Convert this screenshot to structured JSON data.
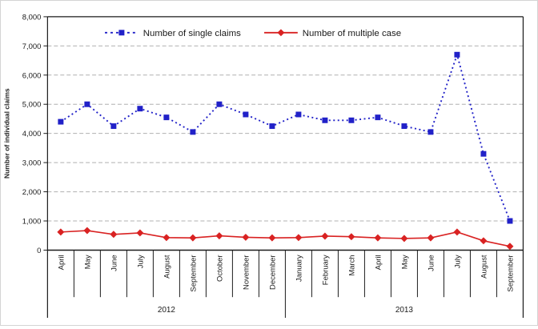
{
  "chart_data": {
    "type": "line",
    "title": "",
    "ylabel": "Number of individual claims",
    "xlabel": "",
    "ylim": [
      0,
      8000
    ],
    "ytick_interval": 1000,
    "ytick_labels": [
      "0",
      "1,000",
      "2,000",
      "3,000",
      "4,000",
      "5,000",
      "6,000",
      "7,000",
      "8,000"
    ],
    "grid": "horizontal-dashed",
    "legend_position": "top-center-inside",
    "axis_color": "#1a1a1a",
    "grid_color": "#b0b0b0",
    "categories": [
      "April",
      "May",
      "June",
      "July",
      "August",
      "September",
      "October",
      "November",
      "December",
      "January",
      "February",
      "March",
      "April",
      "May",
      "June",
      "July",
      "August",
      "September"
    ],
    "year_groups": [
      {
        "label": "2012",
        "start": 0,
        "count": 9
      },
      {
        "label": "2013",
        "start": 9,
        "count": 9
      }
    ],
    "series": [
      {
        "name": "Number of single claims",
        "color": "#2121c8",
        "line_style": "dashed",
        "marker": "square",
        "values": [
          4400,
          5000,
          4250,
          4850,
          4550,
          4050,
          5000,
          4650,
          4250,
          4650,
          4450,
          4450,
          4550,
          4250,
          4050,
          6700,
          3300,
          1000
        ]
      },
      {
        "name": "Number of multiple case",
        "color": "#d92222",
        "line_style": "solid",
        "marker": "diamond",
        "values": [
          620,
          670,
          540,
          590,
          430,
          420,
          490,
          440,
          420,
          430,
          480,
          460,
          420,
          400,
          420,
          620,
          320,
          130
        ]
      }
    ]
  }
}
